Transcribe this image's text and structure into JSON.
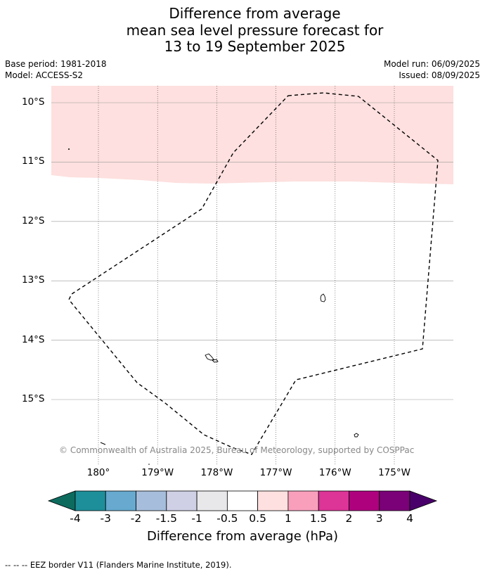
{
  "title": {
    "line1": "Difference from average",
    "line2": "mean sea level pressure forecast for",
    "line3": "13 to 19 September 2025"
  },
  "meta": {
    "base_period": "Base period: 1981-2018",
    "model": "Model: ACCESS-S2",
    "model_run": "Model run: 06/09/2025",
    "issued": "Issued: 08/09/2025"
  },
  "map": {
    "lat_labels": [
      "10°S",
      "11°S",
      "12°S",
      "13°S",
      "14°S",
      "15°S"
    ],
    "lon_labels": [
      "180°",
      "179°W",
      "178°W",
      "177°W",
      "176°W",
      "175°W"
    ],
    "anomaly_band_color": "#fde0df",
    "anomaly_band_category": "0.5 to 1",
    "copyright": "© Commonwealth of Australia 2025, Bureau of Meteorology, supported by COSPPac"
  },
  "colorbar": {
    "ticks": [
      "-4",
      "-3",
      "-2",
      "-1.5",
      "-1",
      "-0.5",
      "0.5",
      "1",
      "1.5",
      "2",
      "3",
      "4"
    ],
    "colors": [
      "#0d6b5e",
      "#1d8f9a",
      "#67a9cf",
      "#a6bddb",
      "#cfd0e6",
      "#e8e7ea",
      "#ffffff",
      "#fde0df",
      "#f99fbc",
      "#dd3497",
      "#ae017e",
      "#7a0177",
      "#49006a"
    ],
    "title": "Difference from average (hPa)"
  },
  "footnote": "--  --  -- EEZ border V11 (Flanders Marine Institute, 2019)."
}
